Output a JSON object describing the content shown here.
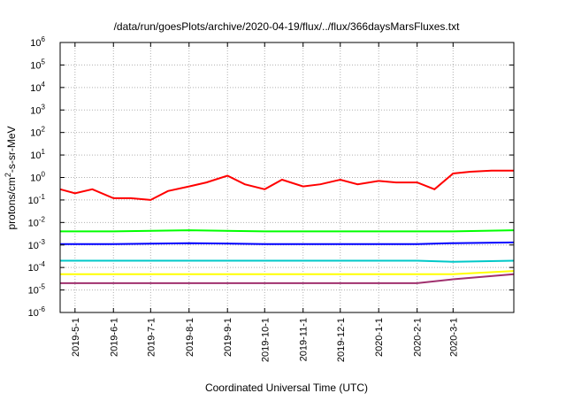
{
  "chart_data": {
    "type": "line",
    "title": "/data/run/goesPlots/archive/2020-04-19/flux/../flux/366daysMarsFluxes.txt",
    "xlabel": "Coordinated Universal Time (UTC)",
    "ylabel": {
      "prefix": "protons/cm",
      "sup": "2",
      "suffix": "-s-sr-MeV"
    },
    "yscale": "log",
    "ylim": [
      1e-06,
      1000000.0
    ],
    "xlim": [
      "2019-04-19",
      "2020-04-19"
    ],
    "grid": true,
    "legend": "none",
    "y_ticks": [
      {
        "value": 1e-06,
        "base": "10",
        "exp": "-6"
      },
      {
        "value": 1e-05,
        "base": "10",
        "exp": "-5"
      },
      {
        "value": 0.0001,
        "base": "10",
        "exp": "-4"
      },
      {
        "value": 0.001,
        "base": "10",
        "exp": "-3"
      },
      {
        "value": 0.01,
        "base": "10",
        "exp": "-2"
      },
      {
        "value": 0.1,
        "base": "10",
        "exp": "-1"
      },
      {
        "value": 1.0,
        "base": "10",
        "exp": "0"
      },
      {
        "value": 10.0,
        "base": "10",
        "exp": "1"
      },
      {
        "value": 100.0,
        "base": "10",
        "exp": "2"
      },
      {
        "value": 1000.0,
        "base": "10",
        "exp": "3"
      },
      {
        "value": 10000.0,
        "base": "10",
        "exp": "4"
      },
      {
        "value": 100000.0,
        "base": "10",
        "exp": "5"
      },
      {
        "value": 1000000.0,
        "base": "10",
        "exp": "6"
      }
    ],
    "x_ticks": [
      "2019-5-1",
      "2019-6-1",
      "2019-7-1",
      "2019-8-1",
      "2019-9-1",
      "2019-10-1",
      "2019-11-1",
      "2019-12-1",
      "2020-1-1",
      "2020-2-1",
      "2020-3-1"
    ],
    "series": [
      {
        "color": "#ff0000",
        "x": [
          "2019-04-19",
          "2019-05-01",
          "2019-05-15",
          "2019-06-01",
          "2019-06-15",
          "2019-07-01",
          "2019-07-15",
          "2019-08-01",
          "2019-08-15",
          "2019-09-01",
          "2019-09-15",
          "2019-10-01",
          "2019-10-15",
          "2019-11-01",
          "2019-11-15",
          "2019-12-01",
          "2019-12-15",
          "2020-01-01",
          "2020-01-15",
          "2020-02-01",
          "2020-02-15",
          "2020-03-01",
          "2020-03-15",
          "2020-04-01",
          "2020-04-19"
        ],
        "values": [
          0.3,
          0.2,
          0.3,
          0.12,
          0.12,
          0.1,
          0.25,
          0.4,
          0.6,
          1.2,
          0.5,
          0.3,
          0.8,
          0.4,
          0.5,
          0.8,
          0.5,
          0.7,
          0.6,
          0.6,
          0.3,
          1.5,
          1.8,
          2.0,
          2.0
        ]
      },
      {
        "color": "#00ff00",
        "x": [
          "2019-04-19",
          "2019-06-01",
          "2019-08-01",
          "2019-10-01",
          "2019-12-01",
          "2020-02-01",
          "2020-03-01",
          "2020-04-19"
        ],
        "values": [
          0.004,
          0.004,
          0.0045,
          0.004,
          0.004,
          0.004,
          0.004,
          0.0045
        ]
      },
      {
        "color": "#0000ff",
        "x": [
          "2019-04-19",
          "2019-06-01",
          "2019-08-01",
          "2019-10-01",
          "2019-12-01",
          "2020-02-01",
          "2020-03-01",
          "2020-04-19"
        ],
        "values": [
          0.0011,
          0.0011,
          0.0012,
          0.0011,
          0.0011,
          0.0011,
          0.0012,
          0.0013
        ]
      },
      {
        "color": "#00c8c8",
        "x": [
          "2019-04-19",
          "2019-06-01",
          "2019-08-01",
          "2019-10-01",
          "2019-12-01",
          "2020-02-01",
          "2020-03-01",
          "2020-04-19"
        ],
        "values": [
          0.0002,
          0.0002,
          0.0002,
          0.0002,
          0.0002,
          0.0002,
          0.00018,
          0.0002
        ]
      },
      {
        "color": "#ffff00",
        "x": [
          "2019-04-19",
          "2019-06-01",
          "2019-08-01",
          "2019-10-01",
          "2019-12-01",
          "2020-02-01",
          "2020-03-01",
          "2020-04-19"
        ],
        "values": [
          5e-05,
          5e-05,
          5e-05,
          5e-05,
          5e-05,
          5e-05,
          5e-05,
          7e-05
        ]
      },
      {
        "color": "#a0306e",
        "x": [
          "2019-04-19",
          "2019-06-01",
          "2019-08-01",
          "2019-10-01",
          "2019-12-01",
          "2020-02-01",
          "2020-03-01",
          "2020-04-19"
        ],
        "values": [
          2e-05,
          2e-05,
          2e-05,
          2e-05,
          2e-05,
          2e-05,
          3e-05,
          5e-05
        ]
      }
    ]
  }
}
